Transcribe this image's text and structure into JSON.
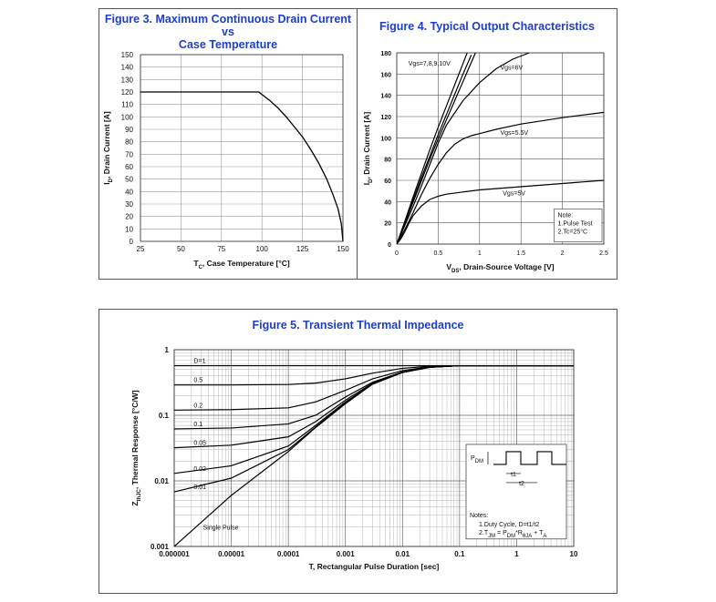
{
  "chart_data": [
    {
      "id": "fig3",
      "type": "line",
      "title_line1": "Figure 3. Maximum Continuous Drain Current vs",
      "title_line2": "Case Temperature",
      "xlabel_prefix": "T",
      "xlabel_sub": "C",
      "xlabel_rest": ", Case Temperature [°C]",
      "ylabel_prefix": "I",
      "ylabel_sub": "D",
      "ylabel_rest": ", Drain Current [A]",
      "xlim": [
        25,
        150
      ],
      "ylim": [
        0,
        150
      ],
      "xticks": [
        25,
        50,
        75,
        100,
        125,
        150
      ],
      "yticks": [
        0,
        10,
        20,
        30,
        40,
        50,
        60,
        70,
        80,
        90,
        100,
        110,
        120,
        130,
        140,
        150
      ],
      "grid": true,
      "series": [
        {
          "name": "ID max",
          "x": [
            25,
            98,
            105,
            110,
            115,
            120,
            125,
            130,
            135,
            140,
            144,
            147,
            149,
            150
          ],
          "y": [
            120,
            120,
            113,
            107,
            100,
            92,
            84,
            74,
            63,
            50,
            37,
            26,
            14,
            0
          ]
        }
      ]
    },
    {
      "id": "fig4",
      "type": "line",
      "title": "Figure 4. Typical Output Characteristics",
      "xlabel_prefix": "V",
      "xlabel_sub": "DS",
      "xlabel_rest": ", Drain-Source Voltage [V]",
      "ylabel_prefix": "I",
      "ylabel_sub": "D",
      "ylabel_rest": ", Drain Current [A]",
      "xlim": [
        0,
        2.5
      ],
      "ylim": [
        0,
        180
      ],
      "xticks": [
        0,
        0.5,
        1,
        1.5,
        2,
        2.5
      ],
      "xtick_labels": [
        "0",
        "0.5",
        "1",
        "1.5",
        "2",
        "2.5"
      ],
      "yticks": [
        0,
        20,
        40,
        60,
        80,
        100,
        120,
        140,
        160,
        180
      ],
      "grid": true,
      "series": [
        {
          "name": "Vgs=7,8,9,10V",
          "x": [
            0,
            0.1,
            0.2,
            0.3,
            0.4,
            0.5,
            0.6,
            0.7,
            0.8,
            0.85
          ],
          "y": [
            0,
            22,
            45,
            67,
            89,
            110,
            130,
            150,
            170,
            180
          ]
        },
        {
          "name": "Vgs=7,8,9,10V b",
          "x": [
            0,
            0.1,
            0.2,
            0.3,
            0.4,
            0.5,
            0.6,
            0.7,
            0.8,
            0.9
          ],
          "y": [
            0,
            21,
            42,
            63,
            83,
            103,
            122,
            141,
            160,
            178
          ]
        },
        {
          "name": "Vgs=7,8,9,10V c",
          "x": [
            0,
            0.1,
            0.2,
            0.3,
            0.4,
            0.5,
            0.6,
            0.7,
            0.8,
            0.9,
            0.95
          ],
          "y": [
            0,
            20,
            40,
            60,
            80,
            99,
            117,
            135,
            153,
            171,
            180
          ]
        },
        {
          "name": "Vgs=6V",
          "x": [
            0,
            0.1,
            0.2,
            0.3,
            0.4,
            0.5,
            0.6,
            0.8,
            1.0,
            1.2,
            1.4,
            1.6
          ],
          "y": [
            0,
            18,
            36,
            55,
            75,
            95,
            112,
            135,
            152,
            165,
            174,
            180
          ]
        },
        {
          "name": "Vgs=5.5V",
          "x": [
            0,
            0.1,
            0.2,
            0.3,
            0.4,
            0.5,
            0.6,
            0.7,
            0.8,
            0.9,
            1.0,
            1.2,
            1.5,
            2.0,
            2.5
          ],
          "y": [
            0,
            14,
            30,
            47,
            62,
            75,
            86,
            94,
            99,
            102,
            104,
            108,
            113,
            119,
            124
          ]
        },
        {
          "name": "Vgs=5V",
          "x": [
            0,
            0.05,
            0.1,
            0.15,
            0.2,
            0.3,
            0.4,
            0.5,
            0.6,
            0.8,
            1.0,
            1.5,
            2.0,
            2.5
          ],
          "y": [
            0,
            5,
            12,
            20,
            27,
            36,
            42,
            45,
            47,
            49,
            51,
            54,
            57,
            60
          ]
        }
      ],
      "annotations": [
        "Vgs=7,8,9,10V",
        "Vgs=6V",
        "Vgs=5.5V",
        "Vgs=5V"
      ],
      "note_lines": [
        "Note:",
        "1.Pulse Test",
        "2.Tc=25°C"
      ]
    },
    {
      "id": "fig5",
      "type": "line",
      "title": "Figure 5. Transient Thermal Impedance",
      "xlabel": "T, Rectangular Pulse Duration [sec]",
      "ylabel_prefix": "Z",
      "ylabel_sub": "thJC",
      "ylabel_rest": ", Thermal Response [°C/W]",
      "xscale": "log",
      "yscale": "log",
      "xlim": [
        1e-06,
        10
      ],
      "ylim": [
        0.001,
        1
      ],
      "xticks": [
        1e-06,
        1e-05,
        0.0001,
        0.001,
        0.01,
        0.1,
        1,
        10
      ],
      "xtick_labels": [
        "0.000001",
        "0.00001",
        "0.0001",
        "0.001",
        "0.01",
        "0.1",
        "1",
        "10"
      ],
      "yticks": [
        0.001,
        0.01,
        0.1,
        1
      ],
      "ytick_labels": [
        "0.001",
        "0.01",
        "0.1",
        "1"
      ],
      "grid": true,
      "series": [
        {
          "name": "D=1",
          "x": [
            1e-06,
            10
          ],
          "y": [
            0.57,
            0.57
          ]
        },
        {
          "name": "0.5",
          "x": [
            1e-06,
            1e-05,
            0.0001,
            0.0003,
            0.001,
            0.003,
            0.01,
            0.03,
            0.1,
            10
          ],
          "y": [
            0.29,
            0.29,
            0.295,
            0.31,
            0.36,
            0.44,
            0.52,
            0.56,
            0.57,
            0.57
          ]
        },
        {
          "name": "0.2",
          "x": [
            1e-06,
            1e-05,
            0.0001,
            0.0003,
            0.001,
            0.003,
            0.01,
            0.03,
            0.1,
            10
          ],
          "y": [
            0.12,
            0.122,
            0.13,
            0.16,
            0.24,
            0.36,
            0.48,
            0.55,
            0.57,
            0.57
          ]
        },
        {
          "name": "0.1",
          "x": [
            1e-06,
            1e-05,
            0.0001,
            0.0003,
            0.001,
            0.003,
            0.01,
            0.03,
            0.1,
            10
          ],
          "y": [
            0.062,
            0.064,
            0.074,
            0.1,
            0.19,
            0.32,
            0.46,
            0.54,
            0.57,
            0.57
          ]
        },
        {
          "name": "0.05",
          "x": [
            1e-06,
            1e-05,
            0.0001,
            0.0003,
            0.001,
            0.003,
            0.01,
            0.03,
            0.1,
            10
          ],
          "y": [
            0.032,
            0.035,
            0.047,
            0.08,
            0.17,
            0.31,
            0.45,
            0.54,
            0.57,
            0.57
          ]
        },
        {
          "name": "0.02",
          "x": [
            1e-06,
            1e-05,
            0.0001,
            0.0003,
            0.001,
            0.003,
            0.01,
            0.03,
            0.1,
            10
          ],
          "y": [
            0.013,
            0.017,
            0.034,
            0.07,
            0.16,
            0.3,
            0.45,
            0.54,
            0.57,
            0.57
          ]
        },
        {
          "name": "0.01",
          "x": [
            1e-06,
            1e-05,
            0.0001,
            0.0003,
            0.001,
            0.003,
            0.01,
            0.03,
            0.1,
            10
          ],
          "y": [
            0.0068,
            0.011,
            0.03,
            0.066,
            0.155,
            0.3,
            0.45,
            0.54,
            0.57,
            0.57
          ]
        },
        {
          "name": "Single Pulse",
          "x": [
            1e-06,
            1e-05,
            0.0001,
            0.0003,
            0.001,
            0.003,
            0.01,
            0.03,
            0.1,
            10
          ],
          "y": [
            0.001,
            0.006,
            0.028,
            0.065,
            0.15,
            0.3,
            0.45,
            0.54,
            0.57,
            0.57
          ]
        }
      ],
      "curve_labels": [
        "D=1",
        "0.5",
        "0.2",
        "0.1",
        "0.05",
        "0.02",
        "0.01",
        "Single Pulse"
      ],
      "inset": {
        "pdm_prefix": "P",
        "pdm_sub": "DM",
        "t1_label": "t1",
        "t2_label": "t2",
        "notes_title": "Notes:",
        "note1": "1.Duty  Cycle, D=t1/t2",
        "note2_a": "2.T",
        "note2_a_sub": "JM",
        "note2_b": " = P",
        "note2_b_sub": "DM",
        "note2_c": "*R",
        "note2_c_sub": "θJA",
        "note2_d": " + T",
        "note2_d_sub": "A"
      }
    }
  ]
}
